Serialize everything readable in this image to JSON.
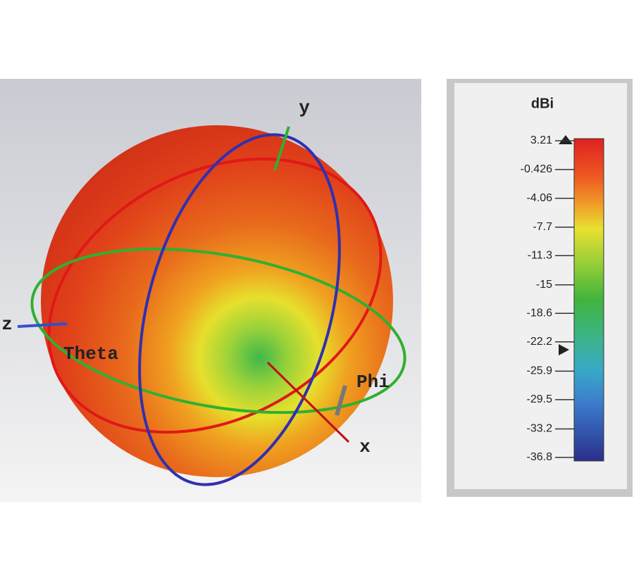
{
  "viewport": {
    "axes": {
      "y": "y",
      "z": "z",
      "x": "x"
    },
    "angles": {
      "theta": "Theta",
      "phi": "Phi"
    }
  },
  "colorbar": {
    "unit": "dBi",
    "ticks": [
      3.21,
      -0.426,
      -4.06,
      -7.7,
      -11.3,
      -15,
      -18.6,
      -22.2,
      -25.9,
      -29.5,
      -33.2,
      -36.8
    ]
  }
}
